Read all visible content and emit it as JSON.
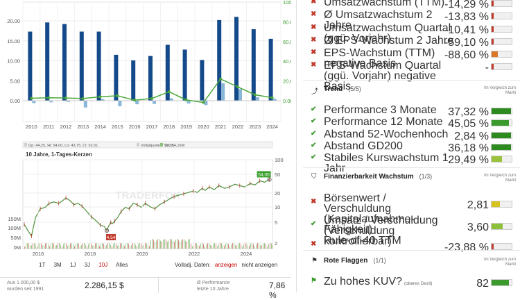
{
  "fund_chart": {
    "years": [
      "2010",
      "2011",
      "2012",
      "2013",
      "2014",
      "2015",
      "2016",
      "2017",
      "2018",
      "2019",
      "2020",
      "2021",
      "2022",
      "2023",
      "2024"
    ],
    "bars": [
      17.3,
      19.6,
      19.2,
      17.3,
      17.3,
      11.5,
      10.1,
      11.2,
      14.0,
      12.8,
      10.2,
      20.2,
      21.0,
      17.9,
      15.5
    ],
    "left_ticks": [
      "20.00",
      "15.00",
      "10.00",
      "5.00",
      "0.00"
    ],
    "right_ticks": [
      "100.00",
      "80.00",
      "60.00",
      "40.00",
      "20.00",
      "0.00"
    ]
  },
  "price_chart": {
    "legend": [
      "Op: 44,25, Hi: 54,00, Lo: 43,75, Cl: 52,01",
      "Volladjustiert: 52,01",
      "Vol: 54,16M"
    ],
    "subtitle": "10 Jahre, 1-Tages-Kerzen",
    "high_label": "54,00",
    "low_label": "4,54",
    "right_ticks": [
      "100",
      "50",
      "20",
      "10",
      "5",
      "2"
    ],
    "left_ticks": [
      "150M",
      "100M",
      "50M",
      "0M"
    ],
    "x_labels": [
      "2016",
      "2018",
      "2020",
      "2022",
      "2024"
    ],
    "watermark": "TRADERFOX"
  },
  "periods": {
    "items": [
      "1T",
      "3M",
      "1J",
      "3J",
      "10J",
      "Alles"
    ],
    "active_index": 4
  },
  "volladj": {
    "label": "Volladj. Daten:",
    "on": "anzeigen",
    "off": "nicht anzeigen"
  },
  "stats": {
    "left_sub1": "Aus 1.000,00 $",
    "left_sub2": "wurden seit 1991",
    "left_value": "2.286,15 $",
    "right_sub1": "Ø Performance",
    "right_sub2": "letzte 10 Jahre",
    "right_value": "7,86 %"
  },
  "growth_rows": [
    {
      "label": "Umsatzwachstum (TTM)",
      "value": "-14,29 %",
      "color": "#c0392b",
      "frac": 0.1
    },
    {
      "label": "Ø Umsatzwachstum 2 Jahre",
      "value": "-13,83 %",
      "color": "#c0392b",
      "frac": 0.1
    },
    {
      "label": "Umsatzwachstum Quartal (ggü. Vorjahr)",
      "value": "-10,41 %",
      "color": "#c0392b",
      "frac": 0.1
    },
    {
      "label": "Ø EPS-Wachstum 2 Jahre",
      "value": "-59,10 %",
      "color": "#c0392b",
      "frac": 0.1
    },
    {
      "label": "EPS-Wachstum (TTM) negative Basis",
      "value": "-88,60 %",
      "color": "#d9782a",
      "frac": 0.3
    },
    {
      "label": "EPS-Wachstum Quartal (ggü. Vorjahr) negative Basis",
      "value": "-",
      "color": "#c0392b",
      "frac": 0.1
    }
  ],
  "trend": {
    "title": "Trend",
    "count": "(5/5)",
    "compare": "Im Vergleich zum Markt",
    "rows": [
      {
        "label": "Performance 3 Monate",
        "value": "37,32 %",
        "color": "#2c8a1e",
        "frac": 0.95
      },
      {
        "label": "Performance 12 Monate",
        "value": "45,05 %",
        "color": "#3a9a2c",
        "frac": 0.85
      },
      {
        "label": "Abstand 52-Wochenhoch",
        "value": "2,84 %",
        "color": "#2c8a1e",
        "frac": 0.95
      },
      {
        "label": "Abstand GD200",
        "value": "36,18 %",
        "color": "#2c8a1e",
        "frac": 0.95
      },
      {
        "label": "Stabiles Kurswachstum 1 Jahr",
        "value": "29,49 %",
        "color": "#9ac23c",
        "frac": 0.5
      }
    ]
  },
  "finance": {
    "title": "Finanzierbarkeit Wachstum",
    "count": "(1/3)",
    "compare": "Im Vergleich zum Markt",
    "rows": [
      {
        "label": "Börsenwert / Verschuldung (Kapitalaufnahme-Fähigkeit)",
        "value": "2,81",
        "mark": "x",
        "color": "#d6c21f",
        "frac": 0.4
      },
      {
        "label": "Umsatz / Verschuldung (Verschuldung kontrollierbar)",
        "value": "3,60",
        "mark": "ok",
        "color": "#8cc03a",
        "frac": 0.55
      },
      {
        "label": "Rule-of-40 TTM",
        "value": "-23,88 %",
        "mark": "x",
        "color": "#c0392b",
        "frac": 0.1
      }
    ]
  },
  "flags": {
    "title": "Rote Flaggen",
    "count": "(1/1)",
    "compare": "Im Vergleich zum Markt",
    "row_label": "Zu hohes KUV?",
    "row_note": "(oberes Dezil)",
    "row_value": "82",
    "color": "#3a9a2c",
    "frac": 0.85
  }
}
